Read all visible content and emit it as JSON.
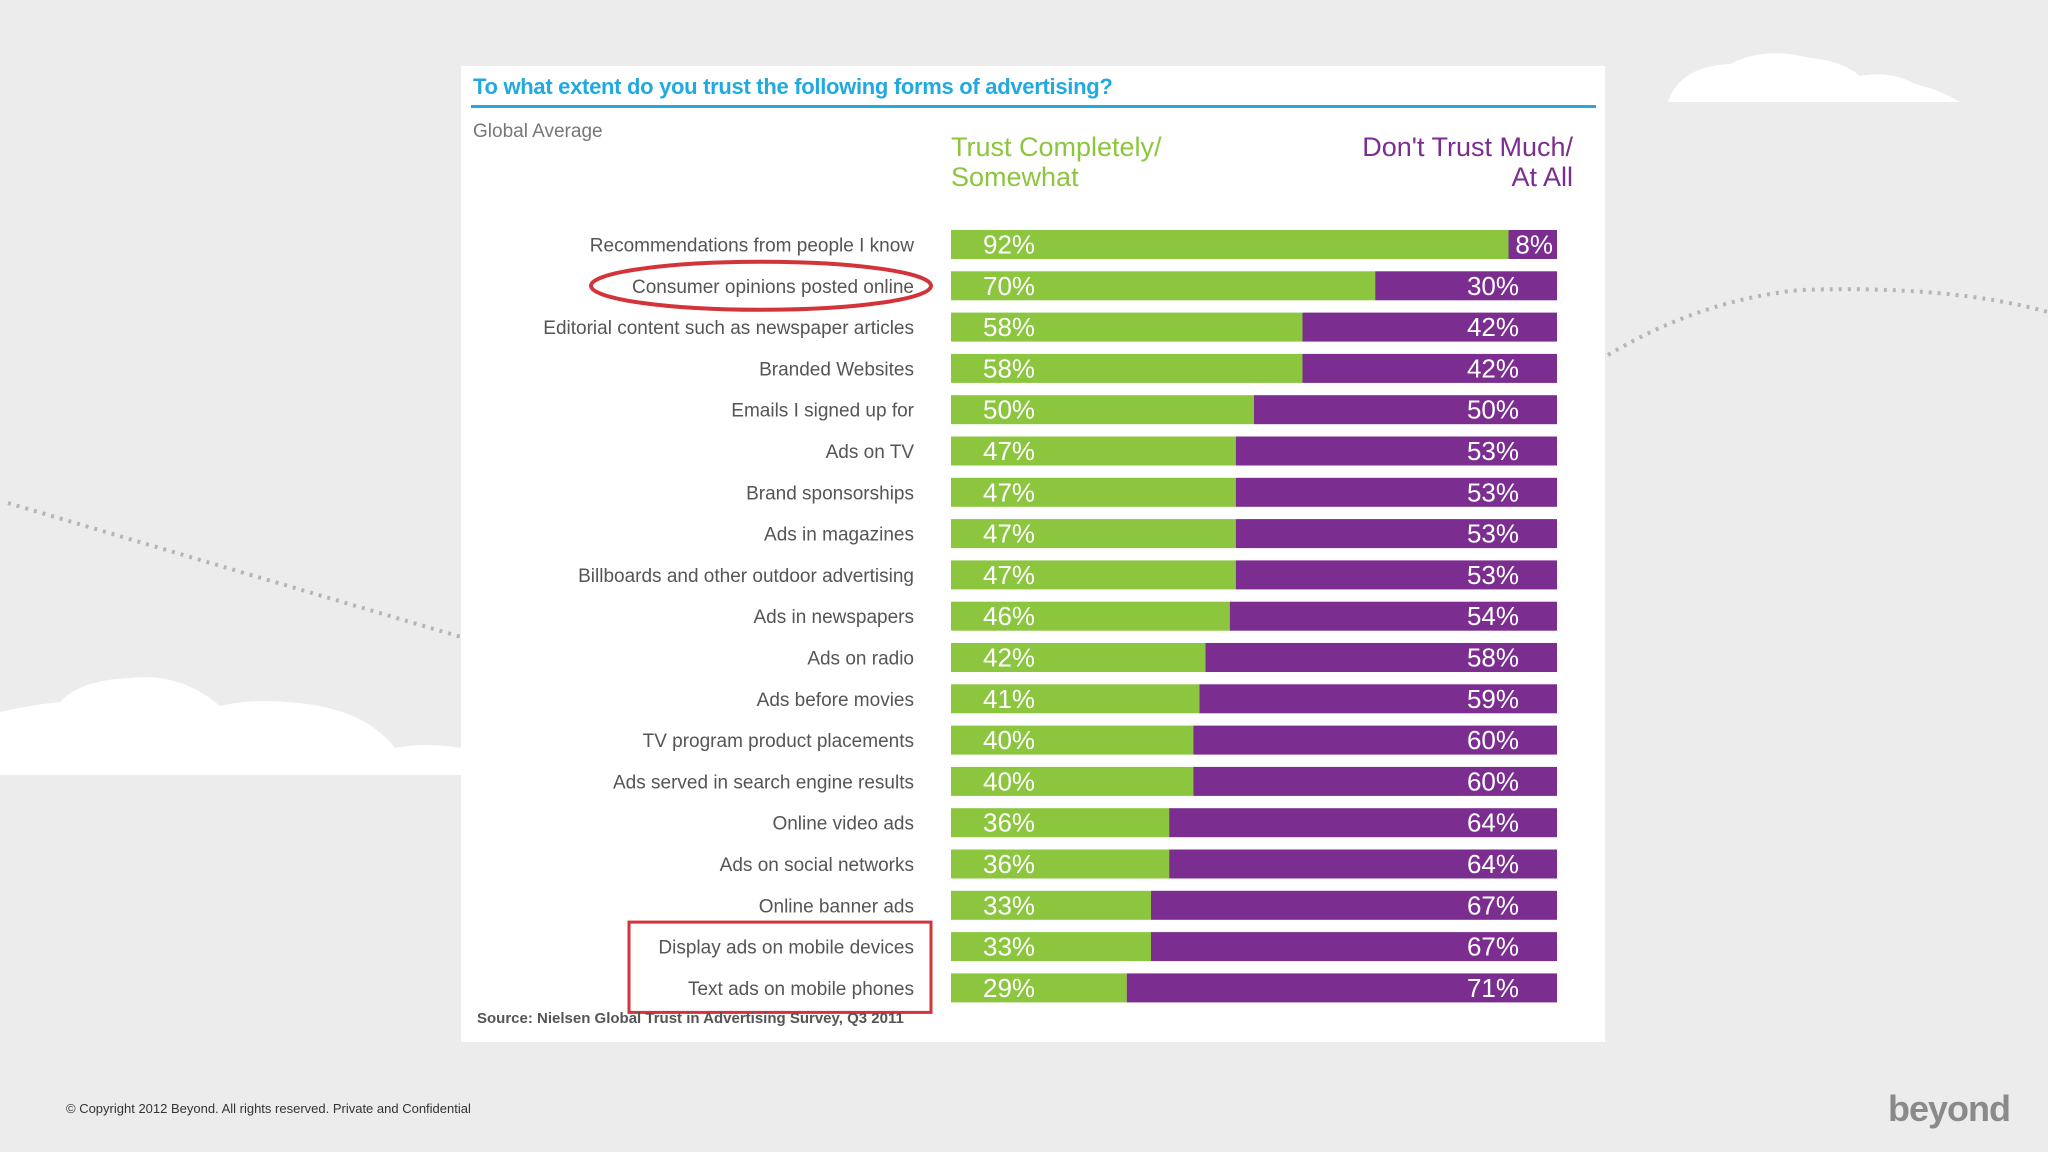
{
  "chart_data": {
    "type": "bar",
    "stacked": true,
    "orientation": "horizontal",
    "title": "To what extent do you trust the following forms of advertising?",
    "subtitle": "Global Average",
    "categories": [
      "Recommendations from people I know",
      "Consumer opinions posted online",
      "Editorial content such as newspaper articles",
      "Branded Websites",
      "Emails I signed up for",
      "Ads on TV",
      "Brand sponsorships",
      "Ads in magazines",
      "Billboards and other outdoor advertising",
      "Ads in newspapers",
      "Ads on radio",
      "Ads before movies",
      "TV program product placements",
      "Ads served in search engine results",
      "Online video ads",
      "Ads on social networks",
      "Online banner ads",
      "Display ads on mobile devices",
      "Text ads on mobile phones"
    ],
    "series": [
      {
        "name": "Trust Completely/ Somewhat",
        "color": "#8cc63f",
        "values": [
          92,
          70,
          58,
          58,
          50,
          47,
          47,
          47,
          47,
          46,
          42,
          41,
          40,
          40,
          36,
          36,
          33,
          33,
          29
        ]
      },
      {
        "name": "Don't Trust Much/ At All",
        "color": "#7b2d90",
        "values": [
          8,
          30,
          42,
          42,
          50,
          53,
          53,
          53,
          53,
          54,
          58,
          59,
          60,
          60,
          64,
          64,
          67,
          67,
          71
        ]
      }
    ],
    "xlim": [
      0,
      100
    ],
    "value_suffix": "%",
    "legend_position": "top",
    "annotations": {
      "circled_category": "Consumer opinions posted online",
      "boxed_categories": [
        "Display ads on mobile devices",
        "Text ads on mobile phones"
      ],
      "highlight_color": "#d3343a"
    },
    "source": "Source: Nielsen Global Trust in Advertising Survey, Q3 2011"
  },
  "legend": {
    "trust_line1": "Trust Completely/",
    "trust_line2": "Somewhat",
    "distrust_line1": "Don't Trust Much/",
    "distrust_line2": "At All"
  },
  "footer": {
    "copyright": "© Copyright 2012 Beyond. All rights reserved. Private and Confidential",
    "logo": "beyond"
  },
  "colors": {
    "accent": "#22a9e0",
    "trust": "#8cc63f",
    "distrust": "#7b2d90"
  }
}
